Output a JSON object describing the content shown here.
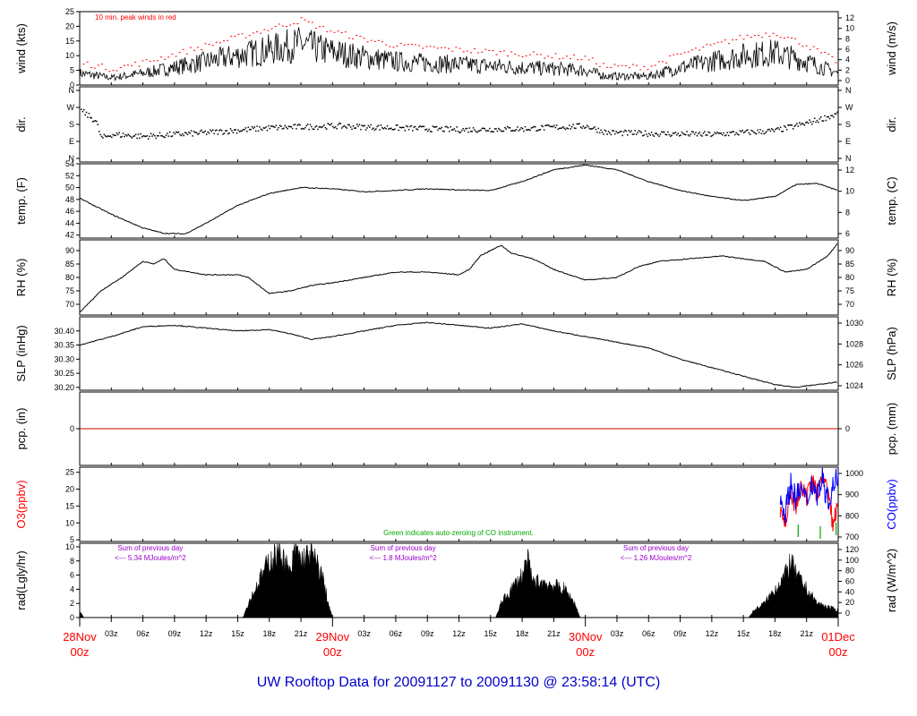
{
  "colors": {
    "axis": "#000000",
    "peak": "#ff0000",
    "o3": "#ff0000",
    "co": "#0000ff",
    "zero": "#00aa00",
    "note": "#9900cc",
    "date": "#ff0000",
    "title": "#0000cc",
    "pcp": "#cc0000"
  },
  "title": "UW Rooftop Data for 20091127  to  20091130 @ 23:58:14  (UTC)",
  "chart_data": {
    "type": "line",
    "x_range_hours": [
      0,
      72
    ],
    "x_hour_ticks": [
      "03z",
      "06z",
      "09z",
      "12z",
      "15z",
      "18z",
      "21z",
      "03z",
      "06z",
      "09z",
      "12z",
      "15z",
      "18z",
      "21z",
      "03z",
      "06z",
      "09z",
      "12z",
      "15z",
      "18z",
      "21z"
    ],
    "x_date_labels": [
      {
        "hour": 0,
        "date": "28Nov",
        "time": "00z"
      },
      {
        "hour": 24,
        "date": "29Nov",
        "time": "00z"
      },
      {
        "hour": 48,
        "date": "30Nov",
        "time": "00z"
      },
      {
        "hour": 72,
        "date": "01Dec",
        "time": "00z"
      }
    ],
    "panels": [
      {
        "id": "wind",
        "ylabel": "wind (kts)",
        "ylabel_right": "wind (m/s)",
        "ylim": [
          0,
          25
        ],
        "yticks": [
          "0",
          "5",
          "10",
          "15",
          "20",
          "25"
        ],
        "yticks_right": [
          "0",
          "2",
          "4",
          "6",
          "8",
          "10",
          "12"
        ],
        "annotation": "10 min. peak winds in red",
        "series_mean": [
          [
            0,
            4
          ],
          [
            3,
            2.5
          ],
          [
            6,
            4
          ],
          [
            9,
            6
          ],
          [
            12,
            8
          ],
          [
            15,
            10
          ],
          [
            18,
            12
          ],
          [
            21,
            14
          ],
          [
            23,
            12
          ],
          [
            26,
            10
          ],
          [
            30,
            8
          ],
          [
            36,
            7
          ],
          [
            42,
            6
          ],
          [
            48,
            5
          ],
          [
            50,
            3
          ],
          [
            54,
            3
          ],
          [
            57,
            6
          ],
          [
            60,
            8
          ],
          [
            63,
            10
          ],
          [
            66,
            11
          ],
          [
            69,
            8
          ],
          [
            72,
            4
          ]
        ]
      },
      {
        "id": "dir",
        "ylabel": "dir.",
        "ylabel_right": "dir.",
        "yticks": [
          "N",
          "E",
          "S",
          "W",
          "N"
        ],
        "series_deg": [
          [
            0,
            260
          ],
          [
            1.5,
            200
          ],
          [
            2,
            110
          ],
          [
            3,
            130
          ],
          [
            6,
            120
          ],
          [
            9,
            130
          ],
          [
            12,
            140
          ],
          [
            18,
            165
          ],
          [
            24,
            175
          ],
          [
            30,
            165
          ],
          [
            36,
            155
          ],
          [
            42,
            160
          ],
          [
            48,
            175
          ],
          [
            50,
            140
          ],
          [
            54,
            135
          ],
          [
            60,
            130
          ],
          [
            66,
            150
          ],
          [
            69,
            190
          ],
          [
            72,
            240
          ]
        ]
      },
      {
        "id": "temp",
        "ylabel": "temp. (F)",
        "ylabel_right": "temp. (C)",
        "ylim": [
          41.5,
          54
        ],
        "yticks": [
          "42",
          "44",
          "46",
          "48",
          "50",
          "52",
          "54"
        ],
        "yticks_right": [
          "6",
          "8",
          "10",
          "12"
        ],
        "series": [
          [
            0,
            48.2
          ],
          [
            3,
            45.5
          ],
          [
            6,
            43.2
          ],
          [
            8,
            42.3
          ],
          [
            10,
            42.2
          ],
          [
            12,
            44
          ],
          [
            15,
            47
          ],
          [
            18,
            49
          ],
          [
            21,
            50
          ],
          [
            24,
            49.8
          ],
          [
            27,
            49.3
          ],
          [
            30,
            49.5
          ],
          [
            33,
            49.8
          ],
          [
            36,
            49.6
          ],
          [
            39,
            49.5
          ],
          [
            42,
            51
          ],
          [
            45,
            53
          ],
          [
            48,
            53.8
          ],
          [
            51,
            53
          ],
          [
            54,
            51
          ],
          [
            57,
            49.5
          ],
          [
            60,
            48.5
          ],
          [
            63,
            47.8
          ],
          [
            66,
            48.5
          ],
          [
            68,
            50.5
          ],
          [
            70,
            50.7
          ],
          [
            72,
            49.5
          ]
        ]
      },
      {
        "id": "rh",
        "ylabel": "RH (%)",
        "ylabel_right": "RH (%)",
        "ylim": [
          66,
          94
        ],
        "yticks": [
          "70",
          "75",
          "80",
          "85",
          "90"
        ],
        "yticks_right": [
          "70",
          "75",
          "80",
          "85",
          "90"
        ],
        "series": [
          [
            0,
            67
          ],
          [
            2,
            75
          ],
          [
            4,
            80
          ],
          [
            6,
            86
          ],
          [
            7,
            85
          ],
          [
            8,
            87
          ],
          [
            9,
            83
          ],
          [
            12,
            81
          ],
          [
            15,
            81
          ],
          [
            16,
            80
          ],
          [
            18,
            74
          ],
          [
            20,
            75
          ],
          [
            22,
            77
          ],
          [
            24,
            78
          ],
          [
            27,
            80
          ],
          [
            30,
            82
          ],
          [
            33,
            82
          ],
          [
            36,
            81
          ],
          [
            37,
            83
          ],
          [
            38,
            88
          ],
          [
            40,
            92
          ],
          [
            41,
            89
          ],
          [
            43,
            87
          ],
          [
            45,
            83
          ],
          [
            48,
            79
          ],
          [
            51,
            80
          ],
          [
            53,
            84
          ],
          [
            55,
            86
          ],
          [
            58,
            87
          ],
          [
            61,
            88
          ],
          [
            63,
            87
          ],
          [
            65,
            86
          ],
          [
            67,
            82
          ],
          [
            69,
            83
          ],
          [
            71,
            88
          ],
          [
            72,
            93
          ]
        ]
      },
      {
        "id": "slp",
        "ylabel": "SLP (inHg)",
        "ylabel_right": "SLP (hPa)",
        "ylim": [
          30.19,
          30.45
        ],
        "yticks": [
          "30.20",
          "30.25",
          "30.30",
          "30.35",
          "30.40"
        ],
        "yticks_right": [
          "1024",
          "1026",
          "1028",
          "1030"
        ],
        "series": [
          [
            0,
            30.35
          ],
          [
            3,
            30.38
          ],
          [
            6,
            30.415
          ],
          [
            9,
            30.42
          ],
          [
            12,
            30.41
          ],
          [
            15,
            30.4
          ],
          [
            18,
            30.405
          ],
          [
            20,
            30.39
          ],
          [
            22,
            30.37
          ],
          [
            24,
            30.38
          ],
          [
            27,
            30.4
          ],
          [
            30,
            30.42
          ],
          [
            33,
            30.43
          ],
          [
            36,
            30.42
          ],
          [
            39,
            30.41
          ],
          [
            42,
            30.425
          ],
          [
            45,
            30.4
          ],
          [
            48,
            30.38
          ],
          [
            51,
            30.36
          ],
          [
            54,
            30.34
          ],
          [
            57,
            30.3
          ],
          [
            60,
            30.27
          ],
          [
            63,
            30.24
          ],
          [
            66,
            30.21
          ],
          [
            68,
            30.2
          ],
          [
            70,
            30.21
          ],
          [
            72,
            30.22
          ]
        ]
      },
      {
        "id": "pcp",
        "ylabel": "pcp. (in)",
        "ylabel_right": "pcp. (mm)",
        "ylim": [
          -1,
          1
        ],
        "yticks": [
          "0"
        ],
        "yticks_right": [
          "0"
        ],
        "series": [
          [
            0,
            0
          ],
          [
            72,
            0
          ]
        ]
      },
      {
        "id": "chem",
        "ylabel": "O3(ppbv)",
        "ylabel_right": "CO(ppbv)",
        "ylim": [
          4.5,
          26.5
        ],
        "yticks": [
          "5",
          "10",
          "15",
          "20",
          "25"
        ],
        "yticks_right": [
          "700",
          "800",
          "900",
          "1000"
        ],
        "annotation": "Green indicates auto-zeroing of CO instrument.",
        "o3_series": [
          [
            66.5,
            14
          ],
          [
            67,
            10
          ],
          [
            67.5,
            18
          ],
          [
            68,
            15
          ],
          [
            68.5,
            20
          ],
          [
            69,
            17
          ],
          [
            69.5,
            22
          ],
          [
            70,
            19
          ],
          [
            70.5,
            24
          ],
          [
            71,
            20
          ],
          [
            71.5,
            9
          ],
          [
            72,
            18
          ]
        ],
        "co_series": [
          [
            66.5,
            880
          ],
          [
            67,
            820
          ],
          [
            67.5,
            950
          ],
          [
            68,
            880
          ],
          [
            68.5,
            930
          ],
          [
            69,
            860
          ],
          [
            69.5,
            960
          ],
          [
            70,
            900
          ],
          [
            70.5,
            980
          ],
          [
            71,
            870
          ],
          [
            71.5,
            930
          ],
          [
            72,
            1000
          ]
        ]
      },
      {
        "id": "rad",
        "ylabel": "rad(Lgly/hr)",
        "ylabel_right": "rad (W/m^2)",
        "ylim": [
          0,
          10.5
        ],
        "yticks": [
          "0",
          "2",
          "4",
          "6",
          "8",
          "10"
        ],
        "yticks_right": [
          "0",
          "20",
          "40",
          "60",
          "80",
          "100",
          "120"
        ],
        "notes": [
          {
            "hour": 6,
            "line1": "Sum of previous day",
            "line2": "<--- 5.34 MJoules/m^2"
          },
          {
            "hour": 30,
            "line1": "Sum of previous day",
            "line2": "<--- 1.8 MJoules/m^2"
          },
          {
            "hour": 54,
            "line1": "Sum of previous day",
            "line2": "<--- 1.26 MJoules/m^2"
          }
        ],
        "series": [
          [
            0,
            1
          ],
          [
            0.4,
            0
          ],
          [
            15.5,
            0
          ],
          [
            16,
            2
          ],
          [
            17,
            5
          ],
          [
            18,
            8
          ],
          [
            19,
            9.5
          ],
          [
            20,
            6
          ],
          [
            20.5,
            10
          ],
          [
            21,
            8
          ],
          [
            22,
            9
          ],
          [
            23,
            6
          ],
          [
            23.6,
            2
          ],
          [
            24,
            0
          ],
          [
            39.5,
            0
          ],
          [
            40,
            2
          ],
          [
            41,
            4
          ],
          [
            42,
            6
          ],
          [
            42.5,
            8
          ],
          [
            43,
            5
          ],
          [
            44,
            5
          ],
          [
            45,
            4.5
          ],
          [
            46,
            4
          ],
          [
            47,
            2
          ],
          [
            47.5,
            0
          ],
          [
            63.5,
            0
          ],
          [
            64,
            1
          ],
          [
            65,
            2
          ],
          [
            66,
            4
          ],
          [
            67,
            6
          ],
          [
            67.5,
            8
          ],
          [
            68,
            6
          ],
          [
            69,
            4
          ],
          [
            70,
            2
          ],
          [
            71,
            1.5
          ],
          [
            72,
            1
          ]
        ]
      }
    ]
  }
}
